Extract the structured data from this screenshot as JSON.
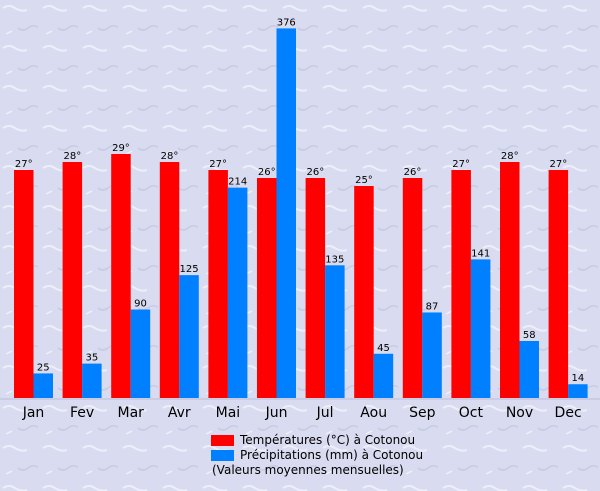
{
  "chart_data": {
    "type": "bar",
    "categories": [
      "Jan",
      "Fev",
      "Mar",
      "Avr",
      "Mai",
      "Jun",
      "Jul",
      "Aou",
      "Sep",
      "Oct",
      "Nov",
      "Dec"
    ],
    "series": [
      {
        "name": "Températures (°C) à Cotonou",
        "values": [
          27,
          28,
          29,
          28,
          27,
          26,
          26,
          25,
          26,
          27,
          28,
          27
        ],
        "labels": [
          "27°",
          "28°",
          "29°",
          "28°",
          "27°",
          "26°",
          "26°",
          "25°",
          "26°",
          "27°",
          "28°",
          "27°"
        ],
        "color": "#ff0000"
      },
      {
        "name": "Précipitations (mm) à Cotonou",
        "values": [
          25,
          35,
          90,
          125,
          214,
          376,
          135,
          45,
          87,
          141,
          58,
          14
        ],
        "labels": [
          "25",
          "35",
          "90",
          "125",
          "214",
          "376",
          "135",
          "45",
          "87",
          "141",
          "58",
          "14"
        ],
        "color": "#0080ff"
      }
    ],
    "note": "(Valeurs moyennes mensuelles)"
  }
}
